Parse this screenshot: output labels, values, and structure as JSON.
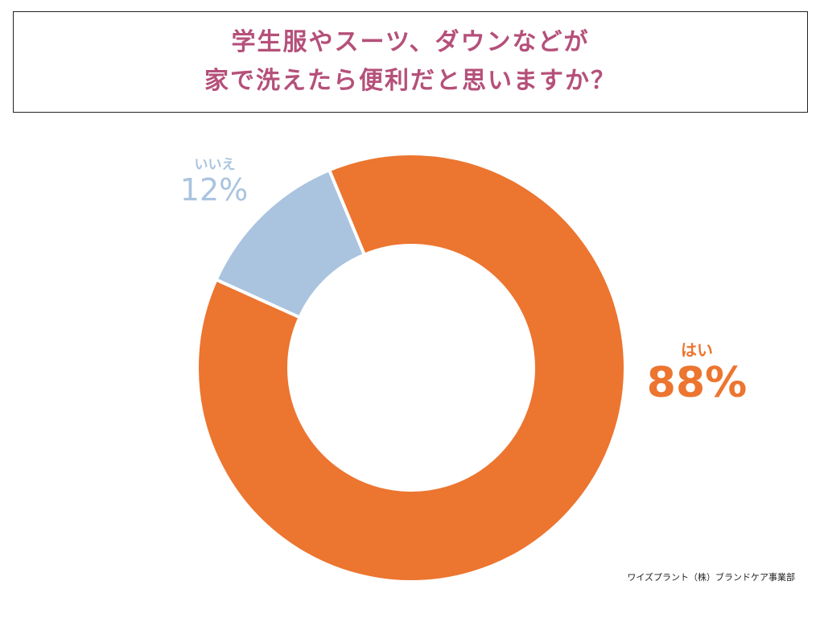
{
  "title": {
    "line1": "学生服やスーツ、ダウンなどが",
    "line2": "家で洗えたら便利だと思いますか？",
    "color": "#b5507a"
  },
  "chart_data": {
    "type": "pie",
    "donut": true,
    "slices": [
      {
        "label": "はい",
        "value": 88,
        "display": "88%",
        "color": "#ec7530"
      },
      {
        "label": "いいえ",
        "value": 12,
        "display": "12%",
        "color": "#aac4df"
      }
    ]
  },
  "credit": "ワイズプラント（株）ブランドケア事業部"
}
